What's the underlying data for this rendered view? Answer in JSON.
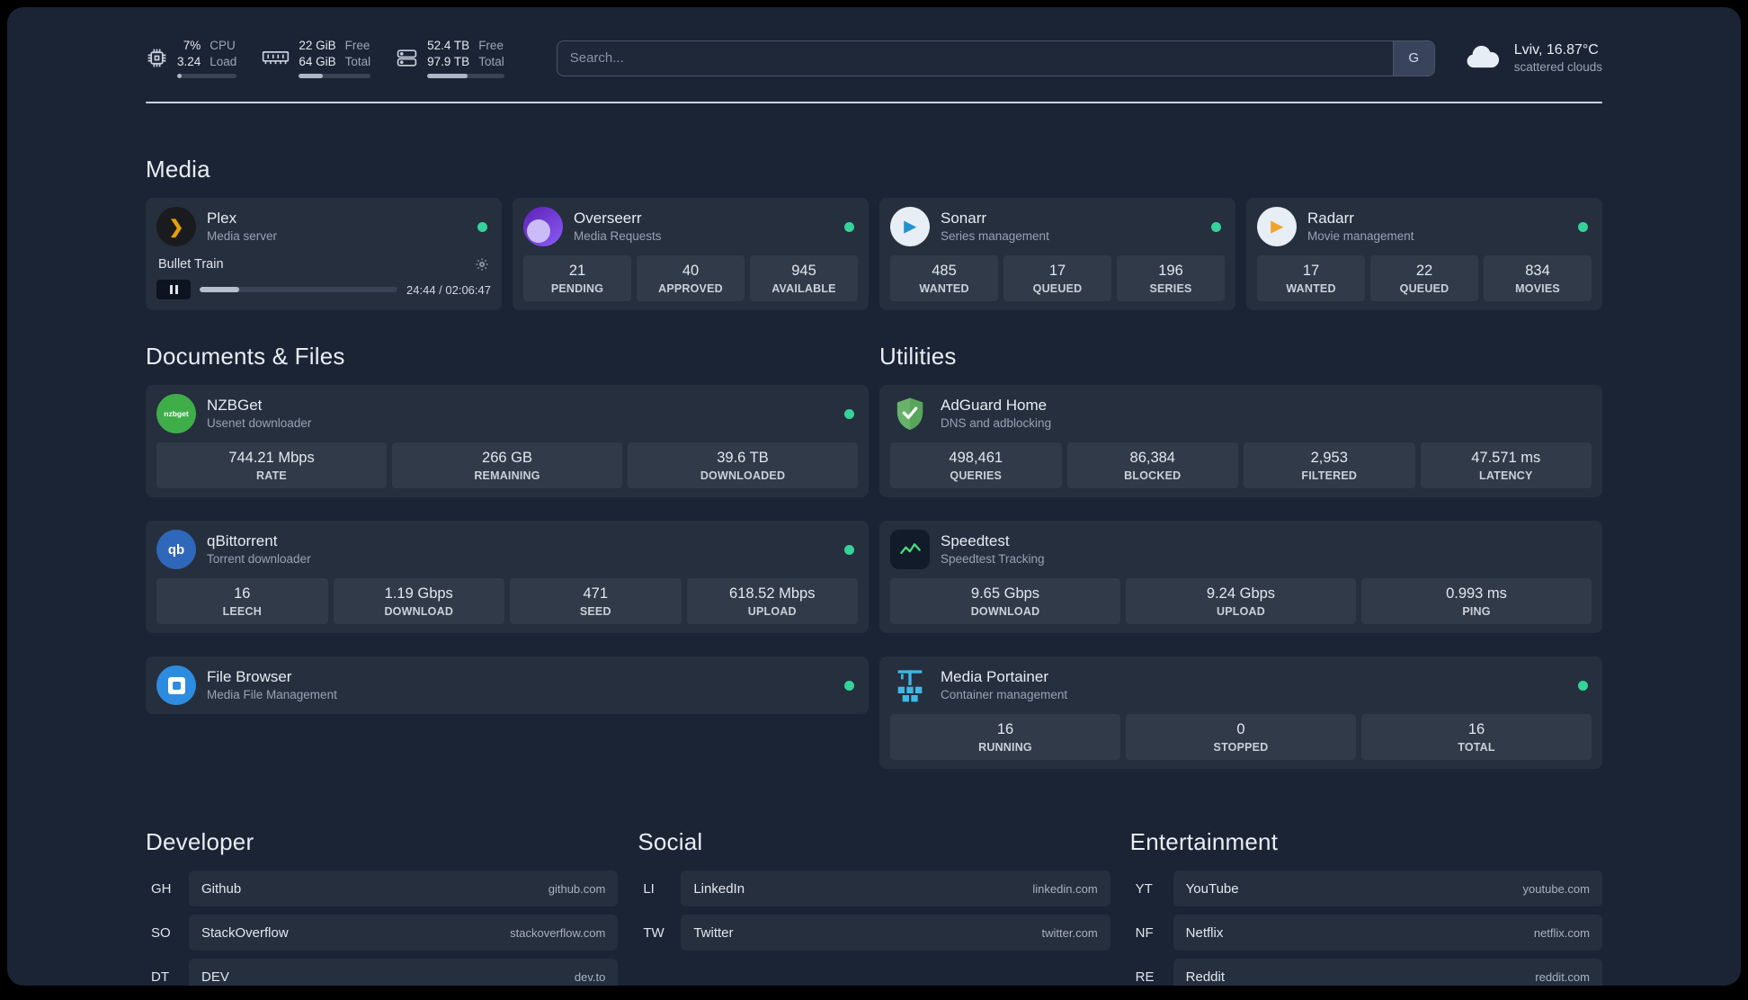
{
  "colors": {
    "status_online": "#34d399"
  },
  "topbar": {
    "cpu": {
      "value_top": "7%",
      "value_bottom": "3.24",
      "label_top": "CPU",
      "label_bottom": "Load",
      "bar_percent": 7
    },
    "memory": {
      "value_top": "22 GiB",
      "value_bottom": "64 GiB",
      "label_top": "Free",
      "label_bottom": "Total",
      "bar_percent": 34
    },
    "disk": {
      "value_top": "52.4 TB",
      "value_bottom": "97.9 TB",
      "label_top": "Free",
      "label_bottom": "Total",
      "bar_percent": 53
    },
    "search": {
      "placeholder": "Search...",
      "button_label": "G"
    },
    "weather": {
      "location": "Lviv, 16.87°C",
      "condition": "scattered clouds"
    }
  },
  "media": {
    "title": "Media",
    "plex": {
      "name": "Plex",
      "desc": "Media server",
      "now_playing": "Bullet Train",
      "time": "24:44 / 02:06:47",
      "progress_percent": 20
    },
    "overseerr": {
      "name": "Overseerr",
      "desc": "Media Requests",
      "stats": [
        {
          "value": "21",
          "label": "PENDING"
        },
        {
          "value": "40",
          "label": "APPROVED"
        },
        {
          "value": "945",
          "label": "AVAILABLE"
        }
      ]
    },
    "sonarr": {
      "name": "Sonarr",
      "desc": "Series management",
      "stats": [
        {
          "value": "485",
          "label": "WANTED"
        },
        {
          "value": "17",
          "label": "QUEUED"
        },
        {
          "value": "196",
          "label": "SERIES"
        }
      ]
    },
    "radarr": {
      "name": "Radarr",
      "desc": "Movie management",
      "stats": [
        {
          "value": "17",
          "label": "WANTED"
        },
        {
          "value": "22",
          "label": "QUEUED"
        },
        {
          "value": "834",
          "label": "MOVIES"
        }
      ]
    }
  },
  "documents": {
    "title": "Documents & Files",
    "nzbget": {
      "name": "NZBGet",
      "desc": "Usenet downloader",
      "icon_text": "nzbget",
      "stats": [
        {
          "value": "744.21 Mbps",
          "label": "RATE"
        },
        {
          "value": "266 GB",
          "label": "REMAINING"
        },
        {
          "value": "39.6 TB",
          "label": "DOWNLOADED"
        }
      ]
    },
    "qbittorrent": {
      "name": "qBittorrent",
      "desc": "Torrent downloader",
      "icon_text": "qb",
      "stats": [
        {
          "value": "16",
          "label": "LEECH"
        },
        {
          "value": "1.19 Gbps",
          "label": "DOWNLOAD"
        },
        {
          "value": "471",
          "label": "SEED"
        },
        {
          "value": "618.52 Mbps",
          "label": "UPLOAD"
        }
      ]
    },
    "filebrowser": {
      "name": "File Browser",
      "desc": "Media File Management"
    }
  },
  "utilities": {
    "title": "Utilities",
    "adguard": {
      "name": "AdGuard Home",
      "desc": "DNS and adblocking",
      "stats": [
        {
          "value": "498,461",
          "label": "QUERIES"
        },
        {
          "value": "86,384",
          "label": "BLOCKED"
        },
        {
          "value": "2,953",
          "label": "FILTERED"
        },
        {
          "value": "47.571 ms",
          "label": "LATENCY"
        }
      ]
    },
    "speedtest": {
      "name": "Speedtest",
      "desc": "Speedtest Tracking",
      "stats": [
        {
          "value": "9.65 Gbps",
          "label": "DOWNLOAD"
        },
        {
          "value": "9.24 Gbps",
          "label": "UPLOAD"
        },
        {
          "value": "0.993 ms",
          "label": "PING"
        }
      ]
    },
    "portainer": {
      "name": "Media Portainer",
      "desc": "Container management",
      "stats": [
        {
          "value": "16",
          "label": "RUNNING"
        },
        {
          "value": "0",
          "label": "STOPPED"
        },
        {
          "value": "16",
          "label": "TOTAL"
        }
      ]
    }
  },
  "bookmarks": {
    "developer": {
      "title": "Developer",
      "items": [
        {
          "abbr": "GH",
          "name": "Github",
          "url": "github.com"
        },
        {
          "abbr": "SO",
          "name": "StackOverflow",
          "url": "stackoverflow.com"
        },
        {
          "abbr": "DT",
          "name": "DEV",
          "url": "dev.to"
        }
      ]
    },
    "social": {
      "title": "Social",
      "items": [
        {
          "abbr": "LI",
          "name": "LinkedIn",
          "url": "linkedin.com"
        },
        {
          "abbr": "TW",
          "name": "Twitter",
          "url": "twitter.com"
        }
      ]
    },
    "entertainment": {
      "title": "Entertainment",
      "items": [
        {
          "abbr": "YT",
          "name": "YouTube",
          "url": "youtube.com"
        },
        {
          "abbr": "NF",
          "name": "Netflix",
          "url": "netflix.com"
        },
        {
          "abbr": "RE",
          "name": "Reddit",
          "url": "reddit.com"
        }
      ]
    }
  }
}
